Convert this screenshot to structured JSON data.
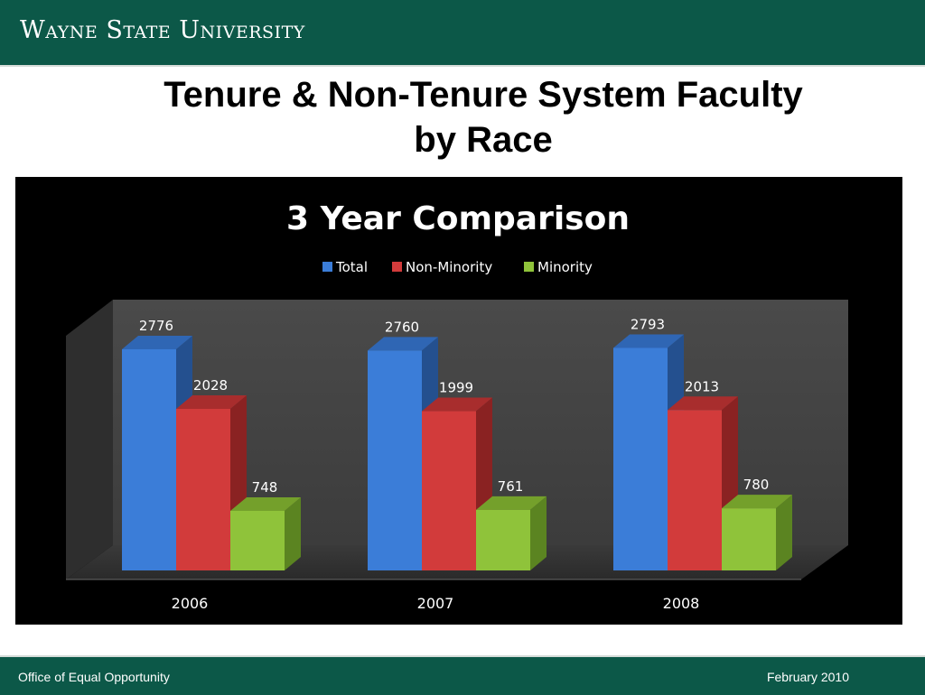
{
  "header": {
    "university": "Wayne State University"
  },
  "slide": {
    "title_line1": "Tenure & Non-Tenure System Faculty",
    "title_line2": "by Race"
  },
  "footer": {
    "left": "Office of Equal Opportunity",
    "right": "February 2010"
  },
  "colors": {
    "header_bg": "#0c5848",
    "total": "#3b7dd8",
    "non_minority": "#d23b3b",
    "minority": "#8fc33a"
  },
  "chart_data": {
    "type": "bar",
    "title": "3 Year Comparison",
    "categories": [
      "2006",
      "2007",
      "2008"
    ],
    "series": [
      {
        "name": "Total",
        "values": [
          2776,
          2760,
          2793
        ]
      },
      {
        "name": "Non-Minority",
        "values": [
          2028,
          1999,
          2013
        ]
      },
      {
        "name": "Minority",
        "values": [
          748,
          761,
          780
        ]
      }
    ],
    "legend": "top",
    "grid": false,
    "ylim": [
      0,
      2900
    ]
  }
}
